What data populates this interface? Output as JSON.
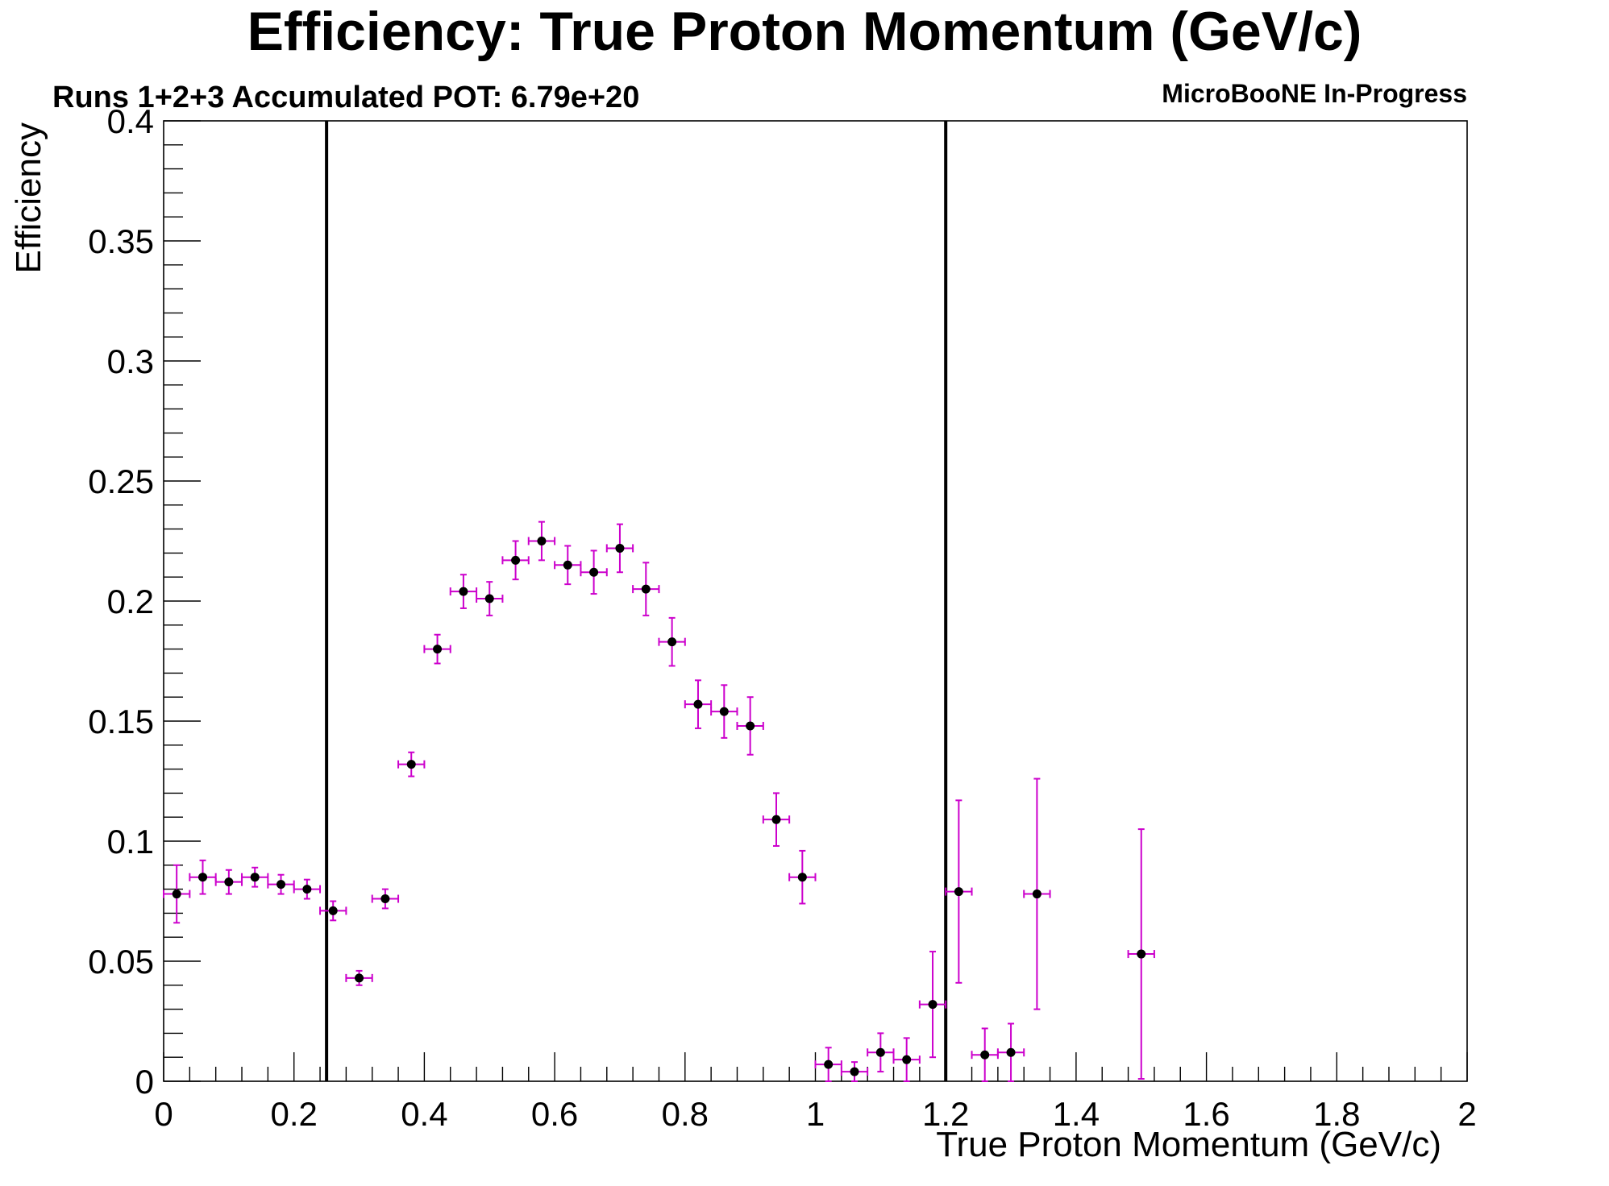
{
  "chart_data": {
    "type": "scatter",
    "title": "Efficiency: True Proton Momentum (GeV/c)",
    "subtitle": "Runs 1+2+3 Accumulated POT: 6.79e+20",
    "tag": "MicroBooNE In-Progress",
    "xlabel": "True Proton Momentum (GeV/c)",
    "ylabel": "Efficiency",
    "xlim": [
      0,
      2
    ],
    "ylim": [
      0,
      0.4
    ],
    "x_ticks": [
      "0",
      "0.2",
      "0.4",
      "0.6",
      "0.8",
      "1",
      "1.2",
      "1.4",
      "1.6",
      "1.8",
      "2"
    ],
    "y_ticks": [
      "0",
      "0.05",
      "0.1",
      "0.15",
      "0.2",
      "0.25",
      "0.3",
      "0.35",
      "0.4"
    ],
    "bin_width": 0.04,
    "cut_lines": [
      0.25,
      1.2
    ],
    "grid": false,
    "legend": "none",
    "colors": {
      "points": "#000000",
      "error_bars": "#cc00cc",
      "cut_lines": "#000000"
    },
    "points": [
      {
        "x": 0.02,
        "y": 0.078,
        "err": 0.012
      },
      {
        "x": 0.06,
        "y": 0.085,
        "err": 0.007
      },
      {
        "x": 0.1,
        "y": 0.083,
        "err": 0.005
      },
      {
        "x": 0.14,
        "y": 0.085,
        "err": 0.004
      },
      {
        "x": 0.18,
        "y": 0.082,
        "err": 0.004
      },
      {
        "x": 0.22,
        "y": 0.08,
        "err": 0.004
      },
      {
        "x": 0.26,
        "y": 0.071,
        "err": 0.004
      },
      {
        "x": 0.3,
        "y": 0.043,
        "err": 0.003
      },
      {
        "x": 0.34,
        "y": 0.076,
        "err": 0.004
      },
      {
        "x": 0.38,
        "y": 0.132,
        "err": 0.005
      },
      {
        "x": 0.42,
        "y": 0.18,
        "err": 0.006
      },
      {
        "x": 0.46,
        "y": 0.204,
        "err": 0.007
      },
      {
        "x": 0.5,
        "y": 0.201,
        "err": 0.007
      },
      {
        "x": 0.54,
        "y": 0.217,
        "err": 0.008
      },
      {
        "x": 0.58,
        "y": 0.225,
        "err": 0.008
      },
      {
        "x": 0.62,
        "y": 0.215,
        "err": 0.008
      },
      {
        "x": 0.66,
        "y": 0.212,
        "err": 0.009
      },
      {
        "x": 0.7,
        "y": 0.222,
        "err": 0.01
      },
      {
        "x": 0.74,
        "y": 0.205,
        "err": 0.011
      },
      {
        "x": 0.78,
        "y": 0.183,
        "err": 0.01
      },
      {
        "x": 0.82,
        "y": 0.157,
        "err": 0.01
      },
      {
        "x": 0.86,
        "y": 0.154,
        "err": 0.011
      },
      {
        "x": 0.9,
        "y": 0.148,
        "err": 0.012
      },
      {
        "x": 0.94,
        "y": 0.109,
        "err": 0.011
      },
      {
        "x": 0.98,
        "y": 0.085,
        "err": 0.011
      },
      {
        "x": 1.02,
        "y": 0.007,
        "err": 0.007
      },
      {
        "x": 1.06,
        "y": 0.004,
        "err": 0.004
      },
      {
        "x": 1.1,
        "y": 0.012,
        "err": 0.008
      },
      {
        "x": 1.14,
        "y": 0.009,
        "err": 0.009
      },
      {
        "x": 1.18,
        "y": 0.032,
        "err": 0.022
      },
      {
        "x": 1.22,
        "y": 0.079,
        "err": 0.038
      },
      {
        "x": 1.26,
        "y": 0.011,
        "err": 0.011
      },
      {
        "x": 1.3,
        "y": 0.012,
        "err": 0.012
      },
      {
        "x": 1.34,
        "y": 0.078,
        "err": 0.048
      },
      {
        "x": 1.5,
        "y": 0.053,
        "err": 0.052
      }
    ]
  }
}
